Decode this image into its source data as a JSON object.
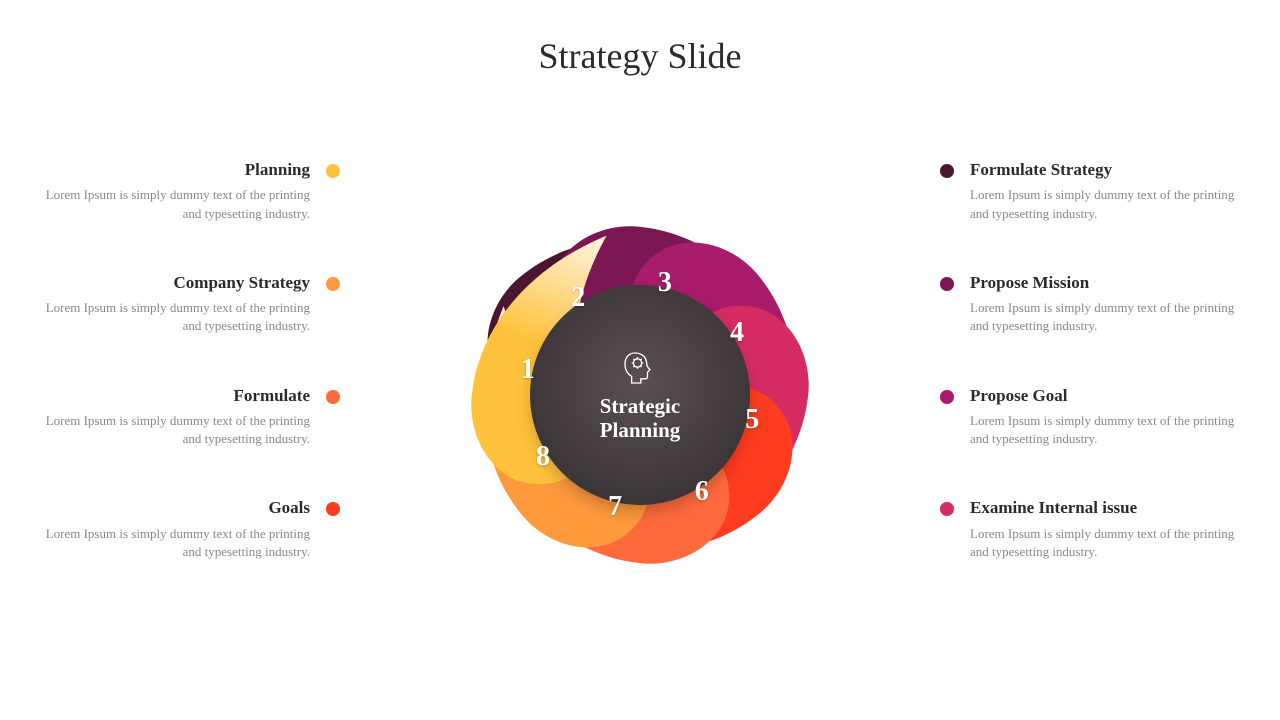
{
  "title": "Strategy Slide",
  "hub": {
    "label_line1": "Strategic",
    "label_line2": "Planning",
    "bg_gradient_inner": "#5a5052",
    "bg_gradient_outer": "#2e2a2b",
    "text_color": "#ffffff"
  },
  "desc_text": "Lorem Ipsum is simply dummy text of the printing and typesetting industry.",
  "title_fontsize": 36,
  "item_title_fontsize": 17,
  "item_desc_fontsize": 13,
  "desc_color": "#888888",
  "text_color": "#2b2b2b",
  "background_color": "#ffffff",
  "petals": [
    {
      "num": "1",
      "color": "#4a1630",
      "fade": "#f1e4eb",
      "angle": -67.5
    },
    {
      "num": "2",
      "color": "#7b1854",
      "fade": "#f3e2ec",
      "angle": -22.5
    },
    {
      "num": "3",
      "color": "#a91b6b",
      "fade": "#f7e3ef",
      "angle": 22.5
    },
    {
      "num": "4",
      "color": "#d52c63",
      "fade": "#fbe6ed",
      "angle": 67.5
    },
    {
      "num": "5",
      "color": "#ff3c1f",
      "fade": "#ffe7e2",
      "angle": 112.5
    },
    {
      "num": "6",
      "color": "#ff6a3c",
      "fade": "#ffece4",
      "angle": 157.5
    },
    {
      "num": "7",
      "color": "#ff9a3c",
      "fade": "#fff1e4",
      "angle": 202.5
    },
    {
      "num": "8",
      "color": "#ffc23c",
      "fade": "#fff6e4",
      "angle": 247.5
    }
  ],
  "left_items": [
    {
      "title": "Planning",
      "bullet_color": "#ffc23c"
    },
    {
      "title": "Company Strategy",
      "bullet_color": "#ff9a3c"
    },
    {
      "title": "Formulate",
      "bullet_color": "#ff6a3c"
    },
    {
      "title": "Goals",
      "bullet_color": "#ff3c1f"
    }
  ],
  "right_items": [
    {
      "title": "Formulate Strategy",
      "bullet_color": "#4a1630"
    },
    {
      "title": "Propose Mission",
      "bullet_color": "#7b1854"
    },
    {
      "title": "Propose Goal",
      "bullet_color": "#a91b6b"
    },
    {
      "title": "Examine Internal issue",
      "bullet_color": "#d52c63"
    }
  ],
  "diagram": {
    "type": "radial-petal",
    "petal_count": 8,
    "hub_radius": 110,
    "number_radius": 115,
    "size": 440
  }
}
